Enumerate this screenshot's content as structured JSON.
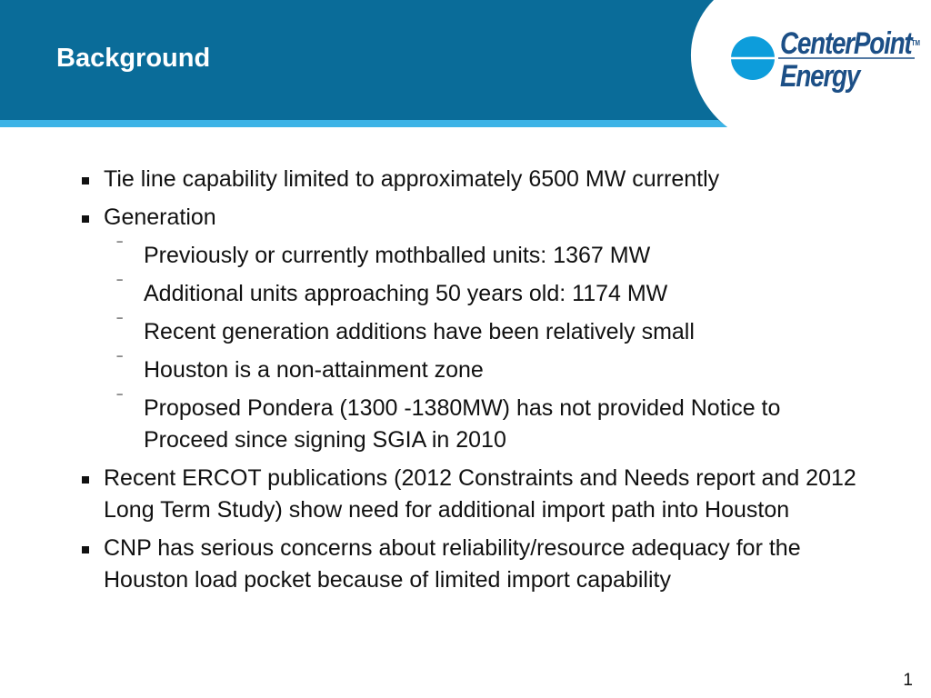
{
  "header": {
    "title": "Background",
    "band_color": "#0a6c99",
    "accent_color": "#3cb3e6"
  },
  "logo": {
    "line1": "CenterPoint",
    "line2": "Energy",
    "trademark": "TM",
    "color": "#1c4f86",
    "mark_color": "#0d9ddb"
  },
  "content": {
    "items": [
      {
        "level": 1,
        "text": "Tie line capability limited to approximately 6500 MW currently"
      },
      {
        "level": 1,
        "text": "Generation"
      },
      {
        "level": 2,
        "text": "Previously or currently mothballed units: 1367 MW"
      },
      {
        "level": 2,
        "text": "Additional units approaching 50 years old: 1174 MW"
      },
      {
        "level": 2,
        "text": "Recent generation additions have been relatively small"
      },
      {
        "level": 2,
        "text": "Houston is a non-attainment zone"
      },
      {
        "level": 2,
        "text": "Proposed Pondera (1300 -1380MW) has not provided Notice to Proceed  since signing SGIA in 2010"
      },
      {
        "level": 1,
        "text": "Recent ERCOT publications (2012 Constraints and Needs report and 2012 Long Term Study) show need for additional import path into Houston"
      },
      {
        "level": 1,
        "text": "CNP has serious concerns about reliability/resource adequacy for the Houston load pocket because of limited import capability"
      }
    ],
    "dash_glyph": "‾"
  },
  "footer": {
    "page_number": "1"
  }
}
